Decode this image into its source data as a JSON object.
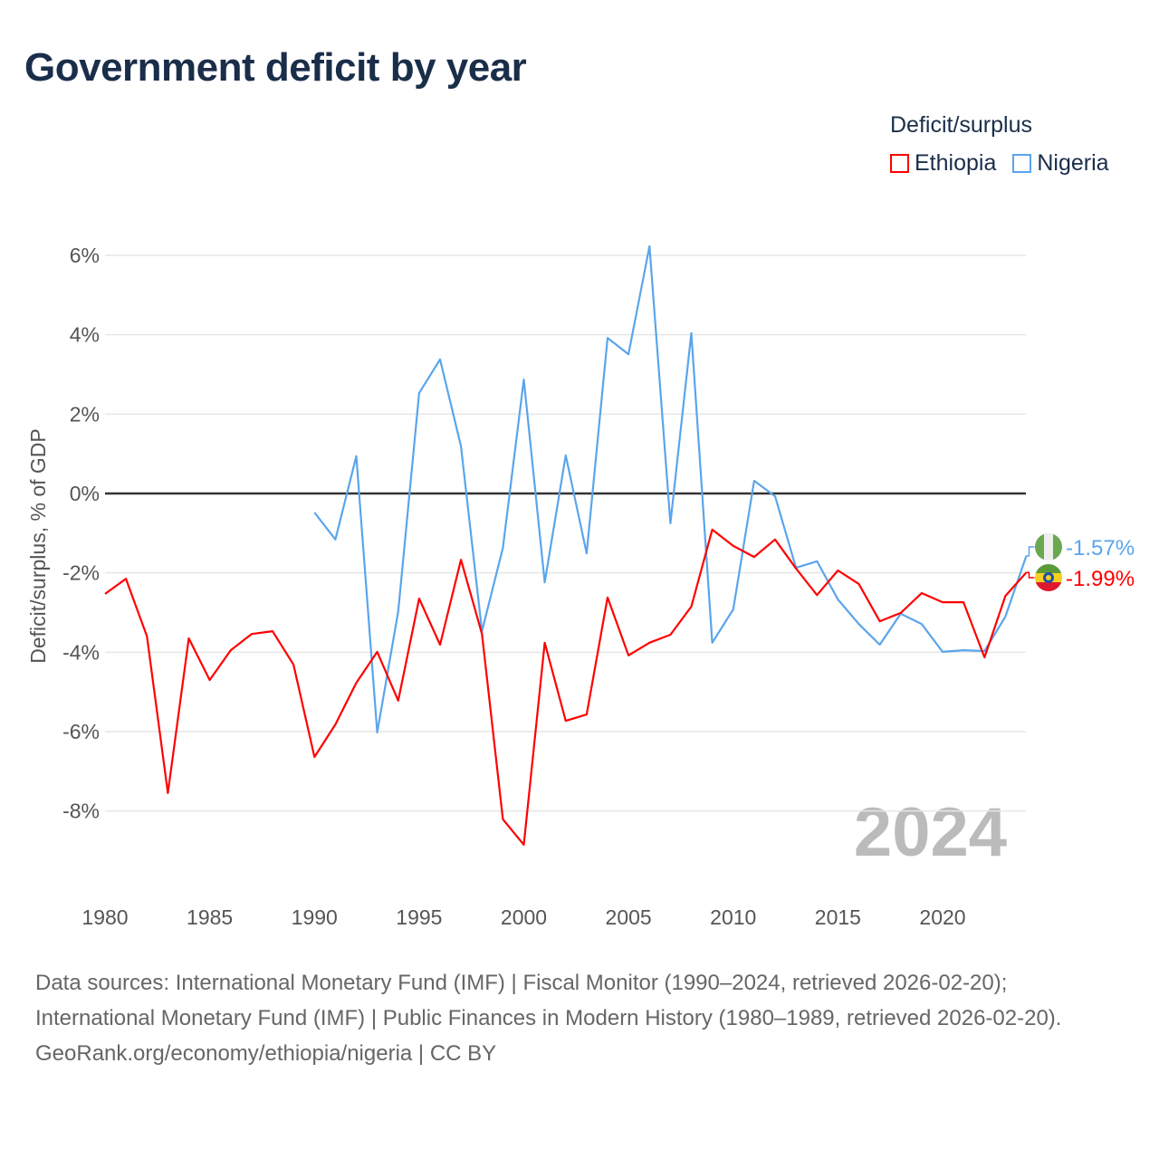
{
  "title": "Government deficit by year",
  "legend": {
    "title": "Deficit/surplus",
    "items": [
      {
        "label": "Ethiopia",
        "color": "#ff0000"
      },
      {
        "label": "Nigeria",
        "color": "#5aa5ec"
      }
    ]
  },
  "year_watermark": "2024",
  "footer": {
    "sources": "Data sources: International Monetary Fund (IMF) | Fiscal Monitor (1990–2024, retrieved 2026-02-20); International Monetary Fund (IMF) | Public Finances in Modern History (1980–1989, retrieved 2026-02-20).",
    "credit": "GeoRank.org/economy/ethiopia/nigeria | CC BY"
  },
  "chart_data": {
    "type": "line",
    "title": "Government deficit by year",
    "xlabel": "",
    "ylabel": "Deficit/surplus, % of GDP",
    "xlim": [
      1980,
      2024
    ],
    "ylim": [
      -10,
      6.5
    ],
    "x_ticks": [
      1980,
      1985,
      1990,
      1995,
      2000,
      2005,
      2010,
      2015,
      2020
    ],
    "x_tick_labels": [
      "1980",
      "1985",
      "1990",
      "1995",
      "2000",
      "2005",
      "2010",
      "2015",
      "2020"
    ],
    "y_ticks": [
      6,
      4,
      2,
      0,
      -2,
      -4,
      -6,
      -8
    ],
    "y_tick_labels": [
      "6%",
      "4%",
      "2%",
      "0%",
      "-2%",
      "-4%",
      "-6%",
      "-8%"
    ],
    "grid": true,
    "legend_position": "top-right",
    "series": [
      {
        "name": "Ethiopia",
        "color": "#ff0000",
        "start_year": 1980,
        "end_label": "-1.99%",
        "values": [
          -2.53,
          -2.15,
          -3.6,
          -7.55,
          -3.65,
          -4.7,
          -3.95,
          -3.54,
          -3.47,
          -4.31,
          -6.64,
          -5.82,
          -4.77,
          -3.99,
          -5.22,
          -2.65,
          -3.81,
          -1.67,
          -3.54,
          -8.21,
          -8.85,
          -3.76,
          -5.73,
          -5.57,
          -2.62,
          -4.08,
          -3.76,
          -3.56,
          -2.85,
          -0.91,
          -1.32,
          -1.6,
          -1.16,
          -1.89,
          -2.56,
          -1.94,
          -2.28,
          -3.22,
          -3.01,
          -2.51,
          -2.74,
          -2.74,
          -4.13,
          -2.58,
          -1.99
        ]
      },
      {
        "name": "Nigeria",
        "color": "#5aa5ec",
        "start_year": 1990,
        "end_label": "-1.57%",
        "values": [
          -0.48,
          -1.16,
          0.94,
          -6.02,
          -2.97,
          2.53,
          3.38,
          1.19,
          -3.47,
          -1.37,
          2.87,
          -2.24,
          0.96,
          -1.51,
          3.92,
          3.51,
          6.23,
          -0.75,
          4.04,
          -3.76,
          -2.92,
          0.32,
          -0.07,
          -1.87,
          -1.71,
          -2.67,
          -3.29,
          -3.81,
          -3.03,
          -3.29,
          -3.99,
          -3.95,
          -3.97,
          -3.1,
          -1.57
        ]
      }
    ]
  }
}
